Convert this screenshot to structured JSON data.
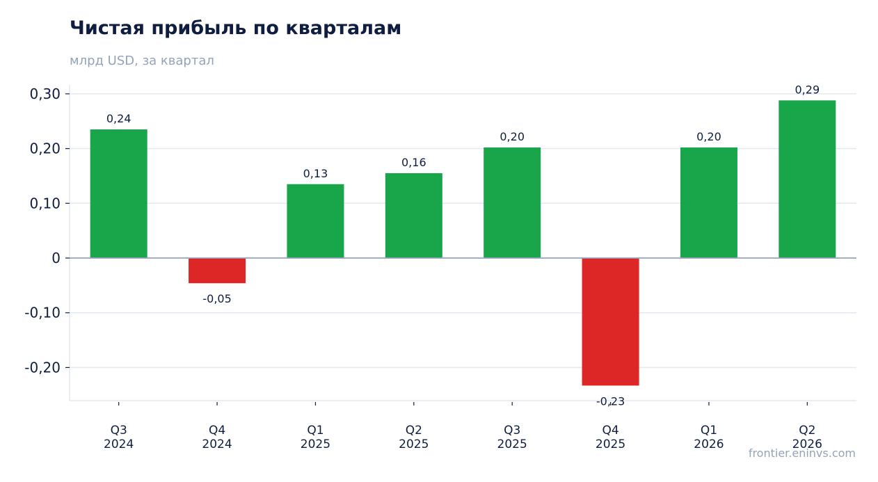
{
  "chart_data": {
    "type": "bar",
    "title": "Чистая прибыль по кварталам",
    "subtitle": "млрд USD, за квартал",
    "categories": [
      [
        "Q3",
        "2024"
      ],
      [
        "Q4",
        "2024"
      ],
      [
        "Q1",
        "2025"
      ],
      [
        "Q2",
        "2025"
      ],
      [
        "Q3",
        "2025"
      ],
      [
        "Q4",
        "2025"
      ],
      [
        "Q1",
        "2026"
      ],
      [
        "Q2",
        "2026"
      ]
    ],
    "values": [
      0.235,
      -0.046,
      0.135,
      0.155,
      0.202,
      -0.233,
      0.202,
      0.288
    ],
    "data_labels": [
      "0,24",
      "-0,05",
      "0,13",
      "0,16",
      "0,20",
      "-0,23",
      "0,20",
      "0,29"
    ],
    "yticks": [
      {
        "value": 0.3,
        "label": "0,30"
      },
      {
        "value": 0.2,
        "label": "0,20"
      },
      {
        "value": 0.1,
        "label": "0,10"
      },
      {
        "value": 0,
        "label": "0"
      },
      {
        "value": -0.1,
        "label": "-0,10"
      },
      {
        "value": -0.2,
        "label": "-0,20"
      }
    ],
    "ylim": [
      -0.26,
      0.315
    ],
    "grid": true,
    "colors": {
      "positive": "#19a64b",
      "negative": "#dd2626",
      "grid": "#e2e8f0",
      "zero_line": "#94a3b8",
      "text": "#0f1d40",
      "muted": "#94a3b8"
    }
  },
  "footer": {
    "watermark": "frontier.eninvs.com"
  }
}
